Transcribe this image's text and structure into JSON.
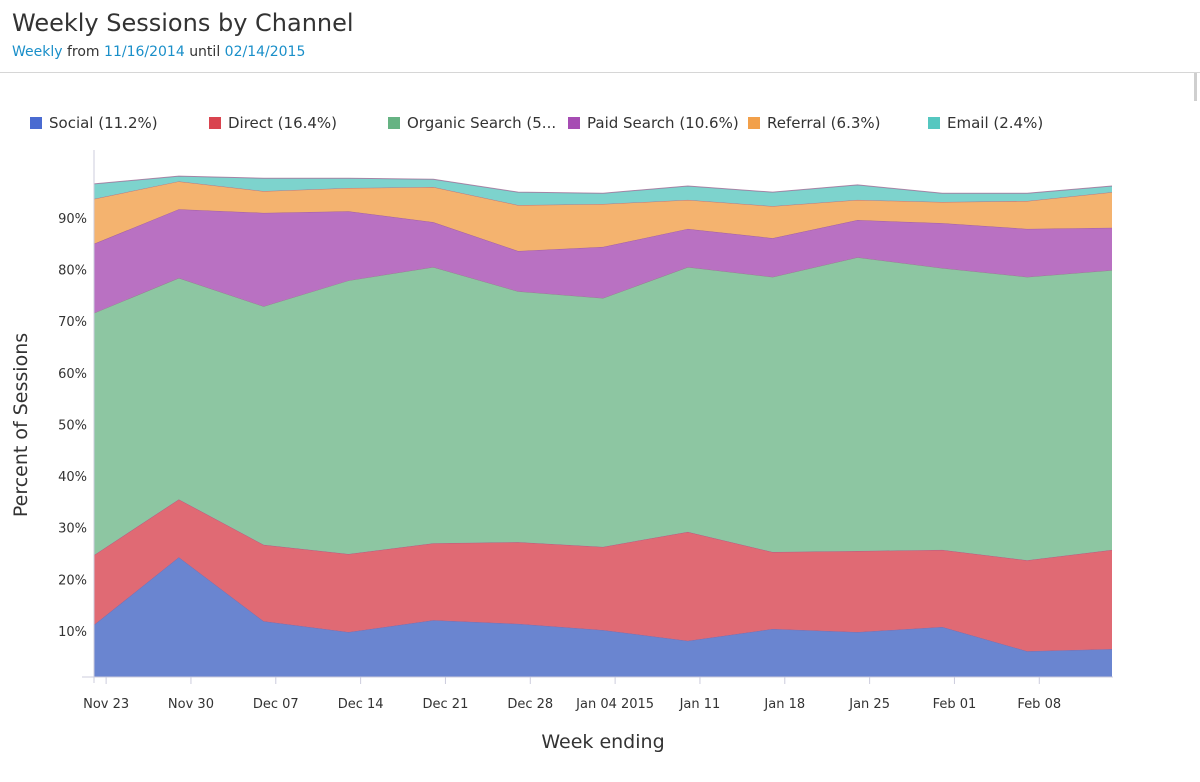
{
  "header": {
    "title": "Weekly Sessions by Channel",
    "interval": "Weekly",
    "from_word": "from",
    "start_date": "11/16/2014",
    "until_word": "until",
    "end_date": "02/14/2015"
  },
  "legend": [
    {
      "label": "Social (11.2%)"
    },
    {
      "label": "Direct (16.4%)"
    },
    {
      "label": "Organic Search (5..."
    },
    {
      "label": "Paid Search (10.6%)"
    },
    {
      "label": "Referral (6.3%)"
    },
    {
      "label": "Email (2.4%)"
    }
  ],
  "chart_data": {
    "type": "area",
    "stacked": true,
    "title": "Weekly Sessions by Channel",
    "xlabel": "Week ending",
    "ylabel": "Percent of Sessions",
    "x_days_from_start": [
      0,
      7,
      14,
      21,
      28,
      35,
      42,
      49,
      56,
      63,
      70,
      77,
      84
    ],
    "x": [
      "2014-11-22",
      "2014-11-29",
      "2014-12-06",
      "2014-12-13",
      "2014-12-20",
      "2014-12-27",
      "2015-01-03",
      "2015-01-10",
      "2015-01-17",
      "2015-01-24",
      "2015-01-31",
      "2015-02-07",
      "2015-02-14"
    ],
    "x_ticks": [
      {
        "day": 1,
        "label": "Nov 23"
      },
      {
        "day": 8,
        "label": "Nov 30"
      },
      {
        "day": 15,
        "label": "Dec 07"
      },
      {
        "day": 22,
        "label": "Dec 14"
      },
      {
        "day": 29,
        "label": "Dec 21"
      },
      {
        "day": 36,
        "label": "Dec 28"
      },
      {
        "day": 43,
        "label": "Jan 04 2015"
      },
      {
        "day": 50,
        "label": "Jan 11"
      },
      {
        "day": 57,
        "label": "Jan 18"
      },
      {
        "day": 64,
        "label": "Jan 25"
      },
      {
        "day": 71,
        "label": "Feb 01"
      },
      {
        "day": 78,
        "label": "Feb 08"
      }
    ],
    "y_ticks": [
      "10%",
      "20%",
      "30%",
      "40%",
      "50%",
      "60%",
      "70%",
      "80%",
      "90%"
    ],
    "y_tick_values": [
      10,
      20,
      30,
      40,
      50,
      60,
      70,
      80,
      90
    ],
    "ylim": [
      0,
      100
    ],
    "grid": false,
    "legend_position": "top",
    "series": [
      {
        "name": "Social",
        "color": "#6a85d0",
        "values": [
          11.2,
          24.3,
          11.9,
          9.8,
          12.1,
          11.4,
          10.2,
          8.1,
          10.4,
          9.8,
          10.8,
          6.1,
          6.5
        ]
      },
      {
        "name": "Direct",
        "color": "#e06a74",
        "values": [
          13.5,
          11.2,
          14.8,
          15.1,
          14.9,
          15.8,
          16.1,
          21.1,
          14.9,
          15.7,
          14.9,
          17.6,
          19.2
        ]
      },
      {
        "name": "Organic Search",
        "color": "#8dc6a2",
        "values": [
          46.9,
          42.9,
          46.2,
          53.0,
          53.5,
          48.6,
          48.2,
          51.3,
          53.3,
          56.9,
          54.6,
          54.9,
          54.2
        ]
      },
      {
        "name": "Paid Search",
        "color": "#b971c2",
        "values": [
          13.4,
          13.3,
          18.1,
          13.4,
          8.7,
          7.8,
          9.9,
          7.4,
          7.5,
          7.2,
          8.7,
          9.3,
          8.2
        ]
      },
      {
        "name": "Referral",
        "color": "#f4b36f",
        "values": [
          8.7,
          5.4,
          4.2,
          4.5,
          6.8,
          8.9,
          8.3,
          5.6,
          6.2,
          3.9,
          4.1,
          5.4,
          6.9
        ]
      },
      {
        "name": "Email",
        "color": "#7dd3cd",
        "values": [
          2.9,
          1.0,
          2.5,
          1.9,
          1.5,
          2.5,
          2.1,
          2.7,
          2.7,
          2.9,
          1.7,
          1.5,
          1.2
        ]
      }
    ]
  }
}
